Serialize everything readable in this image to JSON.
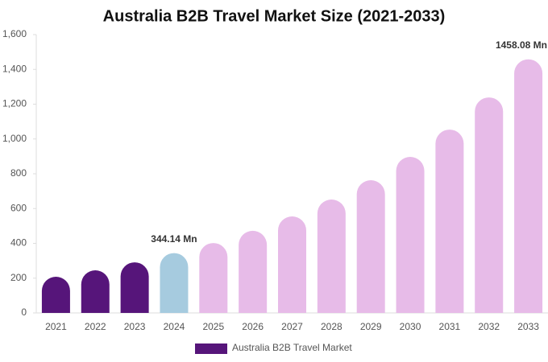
{
  "chart_data": {
    "type": "bar",
    "title": "Australia B2B Travel Market Size (2021-2033)",
    "categories": [
      "2021",
      "2022",
      "2023",
      "2024",
      "2025",
      "2026",
      "2027",
      "2028",
      "2029",
      "2030",
      "2031",
      "2032",
      "2033"
    ],
    "series": [
      {
        "name": "Australia B2B Travel Market",
        "color": "#56157a",
        "values": [
          208,
          245,
          291,
          344.14,
          402,
          472,
          555,
          652,
          763,
          897,
          1054,
          1239,
          1458.08
        ],
        "value_labels": [
          null,
          null,
          null,
          "344.14 Mn",
          null,
          null,
          null,
          null,
          null,
          null,
          null,
          null,
          "1458.08 Mn"
        ],
        "colors": [
          "#56157a",
          "#56157a",
          "#56157a",
          "#a6cbdf",
          "#e7bbe8",
          "#e7bbe8",
          "#e7bbe8",
          "#e7bbe8",
          "#e7bbe8",
          "#e7bbe8",
          "#e7bbe8",
          "#e7bbe8",
          "#e7bbe8"
        ]
      }
    ],
    "ylim": [
      0,
      1600
    ],
    "yticks": [
      0,
      200,
      400,
      600,
      800,
      {
        "value": 1000,
        "label": "1,000"
      },
      {
        "value": 1200,
        "label": "1,200"
      },
      {
        "value": 1400,
        "label": "1,400"
      },
      {
        "value": 1600,
        "label": "1,600"
      }
    ],
    "grid": false
  }
}
